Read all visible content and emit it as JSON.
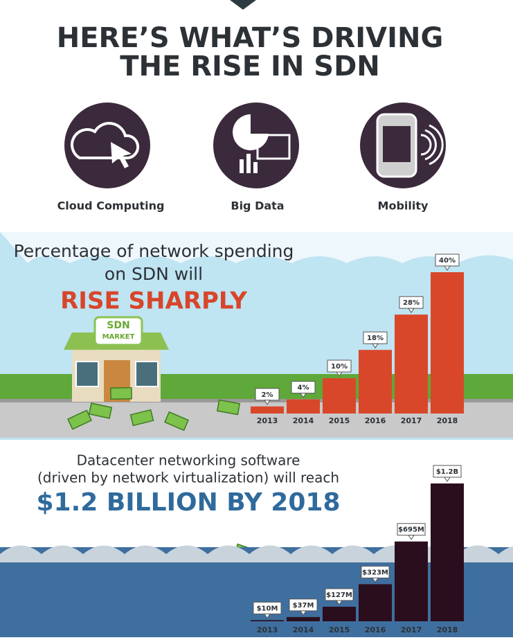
{
  "header": {
    "title": [
      "HERE’S WHAT’S DRIVING",
      "THE RISE IN SDN"
    ]
  },
  "drivers": [
    "Cloud Computing",
    "Big Data",
    "Mobility"
  ],
  "store": {
    "sign": [
      "SDN",
      "MARKET"
    ]
  },
  "chart_data": [
    {
      "type": "bar",
      "title": [
        "Percentage of network spending",
        "on SDN will"
      ],
      "subtitle": "RISE SHARPLY",
      "categories": [
        "2013",
        "2014",
        "2015",
        "2016",
        "2017",
        "2018"
      ],
      "values": [
        2,
        4,
        10,
        18,
        28,
        40
      ],
      "value_labels": [
        "2%",
        "4%",
        "10%",
        "18%",
        "28%",
        "40%"
      ],
      "color": "#d9472a"
    },
    {
      "type": "bar",
      "title": [
        "Datacenter networking software",
        "(driven by network virtualization) will reach"
      ],
      "subtitle": "$1.2 BILLION BY 2018",
      "categories": [
        "2013",
        "2014",
        "2015",
        "2016",
        "2017",
        "2018"
      ],
      "values": [
        10000000,
        37000000,
        127000000,
        323000000,
        695000000,
        1200000000
      ],
      "value_labels": [
        "$10M",
        "$37M",
        "$127M",
        "$323M",
        "$695M",
        "$1.2B"
      ],
      "color": "#2b0e1d"
    }
  ]
}
